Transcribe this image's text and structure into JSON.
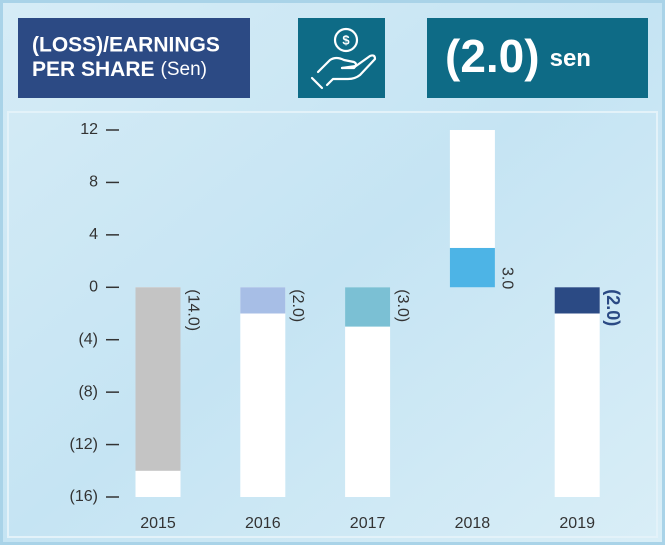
{
  "chart_data": {
    "type": "bar",
    "title_line1": "(LOSS)/EARNINGS",
    "title_line2": "PER SHARE",
    "title_unit": "(Sen)",
    "highlight_value": "(2.0)",
    "highlight_unit": "sen",
    "categories": [
      "2015",
      "2016",
      "2017",
      "2018",
      "2019"
    ],
    "values": [
      -14,
      -2,
      -3,
      3,
      -2
    ],
    "value_labels": [
      "(14.0)",
      "(2.0)",
      "(3.0)",
      "3.0",
      "(2.0)"
    ],
    "colors": [
      "#c4c4c4",
      "#a7bee6",
      "#7bc0d4",
      "#4db4e6",
      "#2b4a84"
    ],
    "ylim": [
      -16,
      12
    ],
    "yticks": [
      {
        "value": -16,
        "label": "(16)"
      },
      {
        "value": -12,
        "label": "(12)"
      },
      {
        "value": -8,
        "label": "(8)"
      },
      {
        "value": -4,
        "label": "(4)"
      },
      0,
      4,
      8,
      12
    ]
  }
}
